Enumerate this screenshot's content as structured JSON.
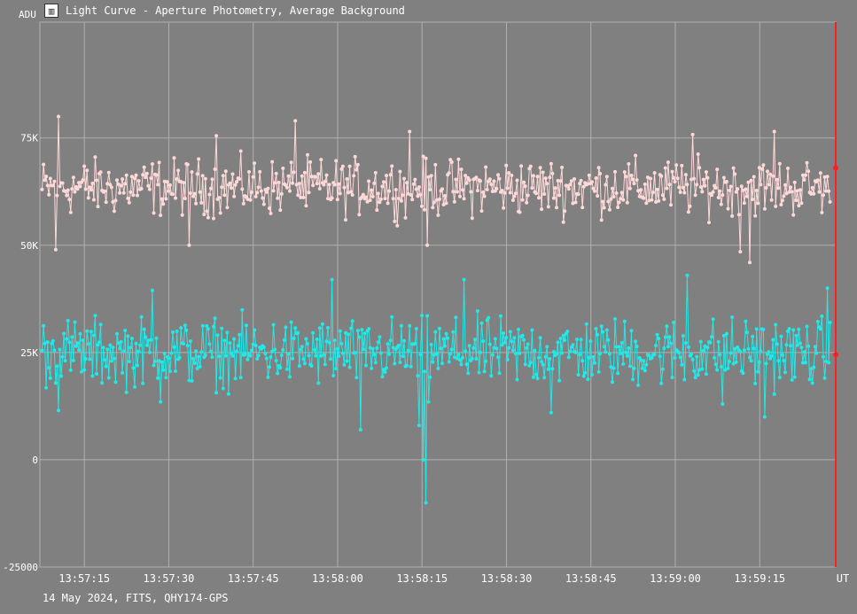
{
  "window": {
    "title": "Light Curve - Aperture Photometry, Average Background",
    "icon": "chart-icon"
  },
  "footer": {
    "text": "14 May 2024, FITS, QHY174-GPS"
  },
  "colors": {
    "background": "#808080",
    "grid": "#b0b0b0",
    "series_target": "#ffd8d8",
    "series_background": "#22e8e8",
    "cursor": "#ff2020"
  },
  "chart_data": {
    "type": "line",
    "yunit": "ADU",
    "xunit": "UT",
    "x_range": [
      "13:57:07.1",
      "13:59:28.5"
    ],
    "ylim": [
      -25000,
      102000
    ],
    "grid": true,
    "yticks": [
      {
        "value": -25000,
        "label": "-25000"
      },
      {
        "value": 0,
        "label": "0"
      },
      {
        "value": 25000,
        "label": "25K"
      },
      {
        "value": 50000,
        "label": "50K"
      },
      {
        "value": 75000,
        "label": "75K"
      }
    ],
    "xticks": [
      "13:57:15",
      "13:57:30",
      "13:57:45",
      "13:58:00",
      "13:58:15",
      "13:58:30",
      "13:58:45",
      "13:59:00",
      "13:59:15"
    ],
    "cursor": {
      "time": "13:59:28.5",
      "values": [
        68000,
        24500
      ]
    },
    "series": [
      {
        "role": "target",
        "mean": 63500,
        "spread": 4500,
        "anchors": [
          {
            "t": "13:57:07.5",
            "v": 63000
          },
          {
            "t": "13:57:09.9",
            "v": 49000
          },
          {
            "t": "13:57:10.4",
            "v": 80000
          },
          {
            "t": "13:57:33.6",
            "v": 50000
          },
          {
            "t": "13:57:38.5",
            "v": 75500
          },
          {
            "t": "13:57:52.5",
            "v": 79000
          },
          {
            "t": "13:58:12.7",
            "v": 76500
          },
          {
            "t": "13:58:16.0",
            "v": 50000
          },
          {
            "t": "13:59:03.0",
            "v": 75800
          },
          {
            "t": "13:59:11.6",
            "v": 48500
          },
          {
            "t": "13:59:13.2",
            "v": 46000
          },
          {
            "t": "13:59:17.5",
            "v": 76500
          },
          {
            "t": "13:59:27.0",
            "v": 66000
          }
        ]
      },
      {
        "role": "background",
        "mean": 25000,
        "spread": 5500,
        "anchors": [
          {
            "t": "13:57:07.5",
            "v": 25500
          },
          {
            "t": "13:57:10.5",
            "v": 11500
          },
          {
            "t": "13:57:27.1",
            "v": 39500
          },
          {
            "t": "13:57:28.5",
            "v": 13500
          },
          {
            "t": "13:57:58.9",
            "v": 42000
          },
          {
            "t": "13:58:04.0",
            "v": 7000
          },
          {
            "t": "13:58:14.4",
            "v": 8000
          },
          {
            "t": "13:58:15.2",
            "v": 0
          },
          {
            "t": "13:58:15.6",
            "v": -10000
          },
          {
            "t": "13:58:16.1",
            "v": 13500
          },
          {
            "t": "13:58:22.5",
            "v": 42000
          },
          {
            "t": "13:58:38.0",
            "v": 11000
          },
          {
            "t": "13:59:02.0",
            "v": 43000
          },
          {
            "t": "13:59:08.5",
            "v": 13000
          },
          {
            "t": "13:59:16.0",
            "v": 10000
          },
          {
            "t": "13:59:27.0",
            "v": 40000
          },
          {
            "t": "13:59:28.0",
            "v": 32000
          }
        ]
      }
    ]
  }
}
